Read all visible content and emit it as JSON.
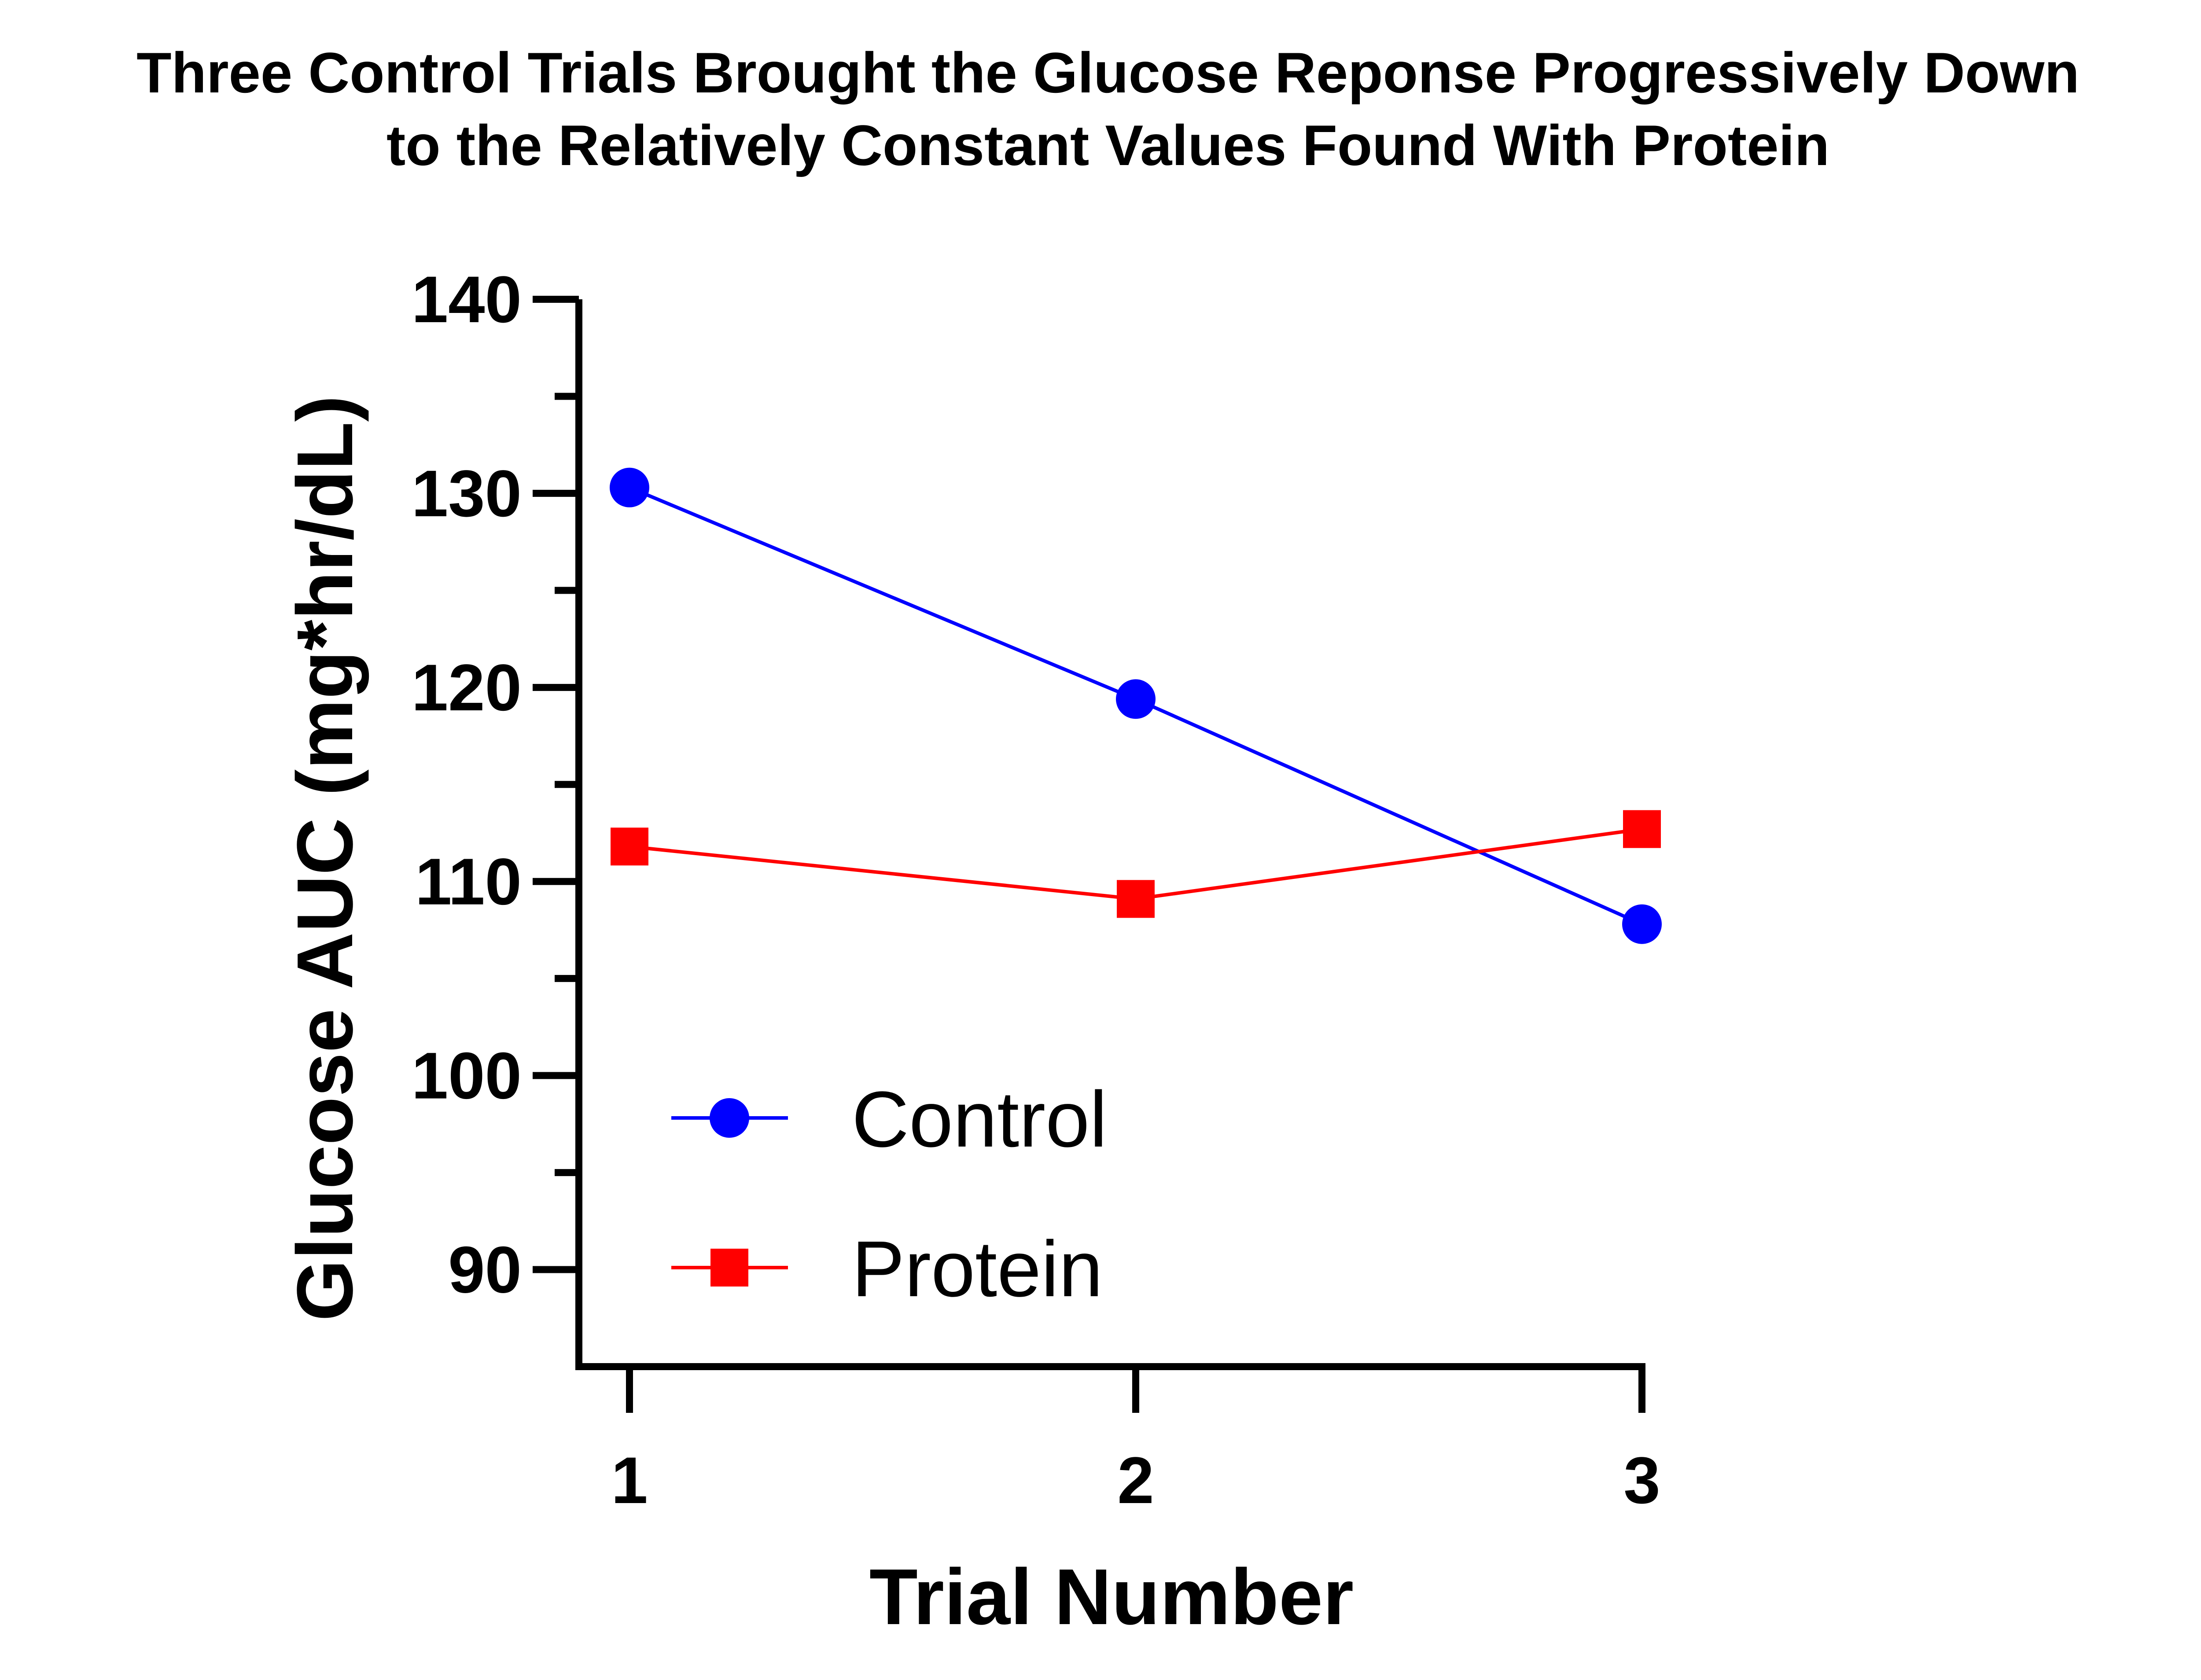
{
  "chart_data": {
    "type": "line",
    "title": "Three Control Trials Brought the Glucose Reponse Progressively Down",
    "subtitle": "to the Relatively Constant Values Found With Protein",
    "xlabel": "Trial Number",
    "ylabel": "Glucose AUC (mg*hr/dL)",
    "x": [
      1,
      2,
      3
    ],
    "xlim": [
      0.9,
      3
    ],
    "ylim": [
      85,
      140
    ],
    "yticks": [
      90,
      100,
      110,
      120,
      130,
      140
    ],
    "yminor_ticks": [
      95,
      105,
      115,
      125,
      135
    ],
    "xticks": [
      1,
      2,
      3
    ],
    "grid": false,
    "legend_position": "bottom-left",
    "series": [
      {
        "name": "Control",
        "values": [
          130.3,
          119.4,
          107.8
        ],
        "color": "#0000ff",
        "marker": "circle"
      },
      {
        "name": "Protein",
        "values": [
          111.8,
          109.1,
          112.7
        ],
        "color": "#ff0000",
        "marker": "square"
      }
    ]
  }
}
